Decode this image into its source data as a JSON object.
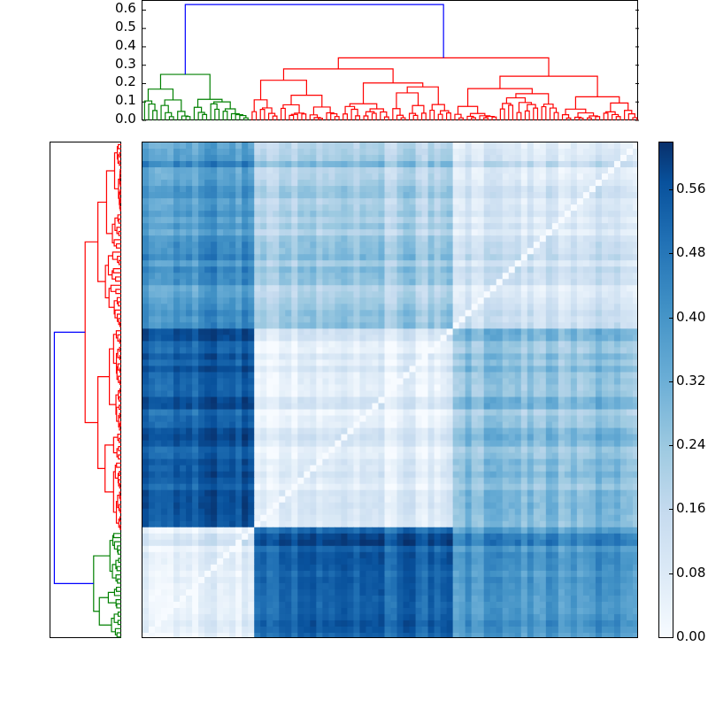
{
  "chart_data": {
    "type": "heatmap",
    "title": "",
    "description": "Clustered correlation/distance heatmap with hierarchical-clustering dendrograms on top and left, and a colorbar on the right (Blues colormap).",
    "colormap": "Blues",
    "colorbar": {
      "ticks": [
        "0.00",
        "0.08",
        "0.16",
        "0.24",
        "0.32",
        "0.40",
        "0.48",
        "0.56"
      ],
      "range": [
        0.0,
        0.62
      ]
    },
    "top_dendrogram": {
      "yticks": [
        "0.0",
        "0.1",
        "0.2",
        "0.3",
        "0.4",
        "0.5",
        "0.6"
      ],
      "ylim": [
        0.0,
        0.65
      ],
      "root_height": 0.63,
      "clusters": [
        {
          "name": "green",
          "color": "#008000",
          "merge_height": 0.25,
          "fraction": 0.22
        },
        {
          "name": "red",
          "color": "#ff0000",
          "merge_height": 0.34,
          "fraction": 0.78,
          "subclusters": [
            {
              "merge_height": 0.28,
              "fraction": 0.41
            },
            {
              "merge_height": 0.24,
              "fraction": 0.37
            }
          ]
        }
      ],
      "link_color_root": "#0000ff"
    },
    "left_dendrogram": {
      "clusters_top_to_bottom": [
        {
          "name": "red-upper",
          "color": "#ff0000",
          "fraction": 0.375
        },
        {
          "name": "red-lower",
          "color": "#ff0000",
          "fraction": 0.405
        },
        {
          "name": "green",
          "color": "#008000",
          "fraction": 0.22
        }
      ],
      "link_color_root": "#0000ff"
    },
    "blocks": {
      "row_bands": [
        "red-upper",
        "red-lower",
        "green"
      ],
      "col_bands": [
        "green",
        "red-a",
        "red-b"
      ],
      "approx_values": [
        [
          0.38,
          0.22,
          0.12
        ],
        [
          0.52,
          0.06,
          0.26
        ],
        [
          0.08,
          0.52,
          0.4
        ]
      ]
    },
    "diagonal": 0.0
  }
}
